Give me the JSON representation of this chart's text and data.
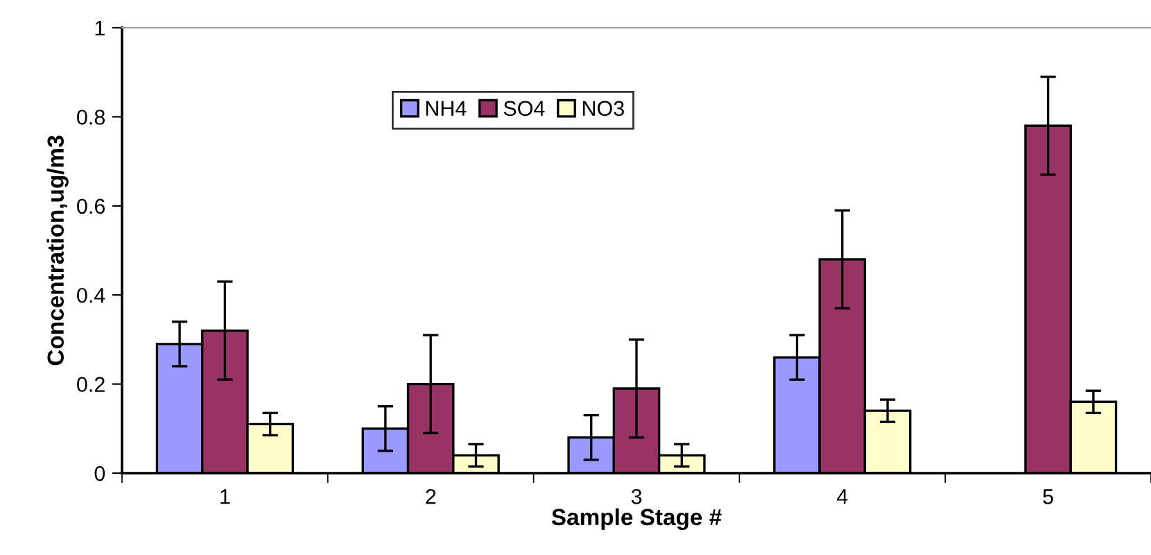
{
  "chart_data": {
    "type": "bar",
    "xlabel": "Sample Stage #",
    "ylabel": "Concentration,ug/m3",
    "categories": [
      "1",
      "2",
      "3",
      "4",
      "5"
    ],
    "series": [
      {
        "name": "NH4",
        "color": "#9999ff",
        "values": [
          0.29,
          0.1,
          0.08,
          0.26,
          null
        ],
        "errors": [
          0.05,
          0.05,
          0.05,
          0.05,
          null
        ]
      },
      {
        "name": "SO4",
        "color": "#993366",
        "values": [
          0.32,
          0.2,
          0.19,
          0.48,
          0.78
        ],
        "errors": [
          0.11,
          0.11,
          0.11,
          0.11,
          0.11
        ]
      },
      {
        "name": "NO3",
        "color": "#ffffcc",
        "values": [
          0.11,
          0.04,
          0.04,
          0.14,
          0.16
        ],
        "errors": [
          0.025,
          0.025,
          0.025,
          0.025,
          0.025
        ]
      }
    ],
    "ylim": [
      0,
      1
    ],
    "yticks": [
      0,
      0.2,
      0.4,
      0.6,
      0.8,
      1
    ],
    "grid": false,
    "legend": "top"
  }
}
